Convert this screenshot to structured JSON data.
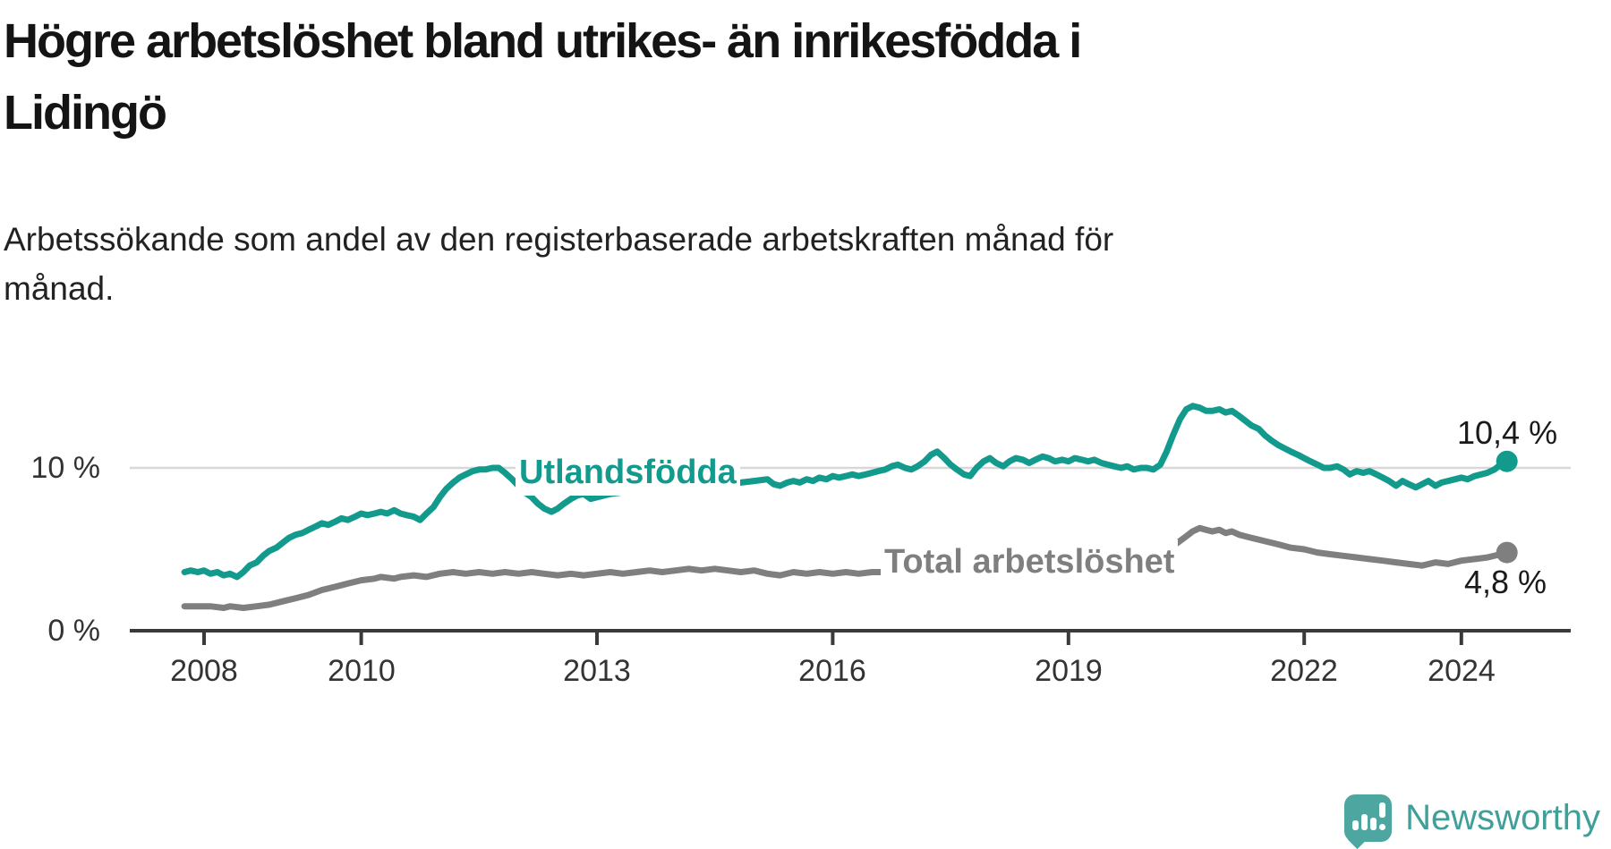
{
  "header": {
    "title_line1": "Högre arbetslöshet bland utrikes- än inrikesfödda i",
    "title_line2": "Lidingö",
    "subtitle_line1": "Arbetssökande som andel av den registerbaserade arbetskraften månad för",
    "subtitle_line2": "månad."
  },
  "branding": {
    "logo_text": "Newsworthy",
    "logo_icon": "newsworthy-speech-bubble-bar-chart-icon"
  },
  "chart_data": {
    "type": "line",
    "title": "Högre arbetslöshet bland utrikes- än inrikesfödda i Lidingö",
    "subtitle": "Arbetssökande som andel av den registerbaserade arbetskraften månad för månad.",
    "xlabel": "",
    "ylabel": "Arbetssökande som andel av den registerbaserade arbetskraften (%)",
    "x_unit": "decimal year, monthly data",
    "x_range": [
      2007.75,
      2024.58
    ],
    "ylim": [
      0,
      15
    ],
    "grid": "horizontal-only",
    "y_grid": [
      10
    ],
    "y_tick_labels": [
      "10 %",
      "0 %"
    ],
    "x_ticks": [
      2008,
      2010,
      2013,
      2016,
      2019,
      2022,
      2024
    ],
    "x_tick_labels": [
      "2008",
      "2010",
      "2013",
      "2016",
      "2019",
      "2022",
      "2024"
    ],
    "legend_position": "inline-labels-on-lines",
    "series": [
      {
        "name": "Utlandsfödda",
        "color": "#129a8d",
        "end_label": "10,4 %",
        "end_value": 10.4,
        "points": [
          [
            2007.75,
            3.6
          ],
          [
            2007.83,
            3.7
          ],
          [
            2007.92,
            3.6
          ],
          [
            2008.0,
            3.7
          ],
          [
            2008.08,
            3.5
          ],
          [
            2008.17,
            3.6
          ],
          [
            2008.25,
            3.4
          ],
          [
            2008.33,
            3.5
          ],
          [
            2008.42,
            3.3
          ],
          [
            2008.5,
            3.6
          ],
          [
            2008.58,
            4.0
          ],
          [
            2008.67,
            4.2
          ],
          [
            2008.75,
            4.6
          ],
          [
            2008.83,
            4.9
          ],
          [
            2008.92,
            5.1
          ],
          [
            2009.0,
            5.4
          ],
          [
            2009.08,
            5.7
          ],
          [
            2009.17,
            5.9
          ],
          [
            2009.25,
            6.0
          ],
          [
            2009.33,
            6.2
          ],
          [
            2009.42,
            6.4
          ],
          [
            2009.5,
            6.6
          ],
          [
            2009.58,
            6.5
          ],
          [
            2009.67,
            6.7
          ],
          [
            2009.75,
            6.9
          ],
          [
            2009.83,
            6.8
          ],
          [
            2009.92,
            7.0
          ],
          [
            2010.0,
            7.2
          ],
          [
            2010.08,
            7.1
          ],
          [
            2010.17,
            7.2
          ],
          [
            2010.25,
            7.3
          ],
          [
            2010.33,
            7.2
          ],
          [
            2010.42,
            7.4
          ],
          [
            2010.5,
            7.2
          ],
          [
            2010.58,
            7.1
          ],
          [
            2010.67,
            7.0
          ],
          [
            2010.75,
            6.8
          ],
          [
            2010.83,
            7.2
          ],
          [
            2010.92,
            7.6
          ],
          [
            2011.0,
            8.2
          ],
          [
            2011.08,
            8.7
          ],
          [
            2011.17,
            9.1
          ],
          [
            2011.25,
            9.4
          ],
          [
            2011.33,
            9.6
          ],
          [
            2011.42,
            9.8
          ],
          [
            2011.5,
            9.9
          ],
          [
            2011.58,
            9.9
          ],
          [
            2011.67,
            10.0
          ],
          [
            2011.75,
            10.0
          ],
          [
            2011.83,
            9.7
          ],
          [
            2011.92,
            9.3
          ],
          [
            2012.0,
            8.9
          ],
          [
            2012.08,
            8.5
          ],
          [
            2012.17,
            8.2
          ],
          [
            2012.25,
            7.8
          ],
          [
            2012.33,
            7.5
          ],
          [
            2012.42,
            7.3
          ],
          [
            2012.5,
            7.5
          ],
          [
            2012.58,
            7.8
          ],
          [
            2012.67,
            8.1
          ],
          [
            2012.75,
            8.3
          ],
          [
            2012.83,
            8.4
          ],
          [
            2012.92,
            8.1
          ],
          [
            2013.0,
            8.2
          ],
          [
            2013.17,
            8.4
          ],
          [
            2013.33,
            8.5
          ],
          [
            2013.5,
            8.6
          ],
          [
            2013.67,
            8.5
          ],
          [
            2013.83,
            8.7
          ],
          [
            2014.0,
            8.8
          ],
          [
            2014.17,
            8.9
          ],
          [
            2014.33,
            8.8
          ],
          [
            2014.5,
            8.9
          ],
          [
            2014.67,
            9.0
          ],
          [
            2014.83,
            9.1
          ],
          [
            2015.0,
            9.2
          ],
          [
            2015.17,
            9.3
          ],
          [
            2015.25,
            9.0
          ],
          [
            2015.33,
            8.9
          ],
          [
            2015.42,
            9.1
          ],
          [
            2015.5,
            9.2
          ],
          [
            2015.58,
            9.1
          ],
          [
            2015.67,
            9.3
          ],
          [
            2015.75,
            9.2
          ],
          [
            2015.83,
            9.4
          ],
          [
            2015.92,
            9.3
          ],
          [
            2016.0,
            9.5
          ],
          [
            2016.08,
            9.4
          ],
          [
            2016.17,
            9.5
          ],
          [
            2016.25,
            9.6
          ],
          [
            2016.33,
            9.5
          ],
          [
            2016.42,
            9.6
          ],
          [
            2016.5,
            9.7
          ],
          [
            2016.58,
            9.8
          ],
          [
            2016.67,
            9.9
          ],
          [
            2016.75,
            10.1
          ],
          [
            2016.83,
            10.2
          ],
          [
            2016.92,
            10.0
          ],
          [
            2017.0,
            9.9
          ],
          [
            2017.08,
            10.1
          ],
          [
            2017.17,
            10.4
          ],
          [
            2017.25,
            10.8
          ],
          [
            2017.33,
            11.0
          ],
          [
            2017.42,
            10.6
          ],
          [
            2017.5,
            10.2
          ],
          [
            2017.58,
            9.9
          ],
          [
            2017.67,
            9.6
          ],
          [
            2017.75,
            9.5
          ],
          [
            2017.83,
            10.0
          ],
          [
            2017.92,
            10.4
          ],
          [
            2018.0,
            10.6
          ],
          [
            2018.08,
            10.3
          ],
          [
            2018.17,
            10.1
          ],
          [
            2018.25,
            10.4
          ],
          [
            2018.33,
            10.6
          ],
          [
            2018.42,
            10.5
          ],
          [
            2018.5,
            10.3
          ],
          [
            2018.58,
            10.5
          ],
          [
            2018.67,
            10.7
          ],
          [
            2018.75,
            10.6
          ],
          [
            2018.83,
            10.4
          ],
          [
            2018.92,
            10.5
          ],
          [
            2019.0,
            10.4
          ],
          [
            2019.08,
            10.6
          ],
          [
            2019.17,
            10.5
          ],
          [
            2019.25,
            10.4
          ],
          [
            2019.33,
            10.5
          ],
          [
            2019.42,
            10.3
          ],
          [
            2019.5,
            10.2
          ],
          [
            2019.58,
            10.1
          ],
          [
            2019.67,
            10.0
          ],
          [
            2019.75,
            10.1
          ],
          [
            2019.83,
            9.9
          ],
          [
            2019.92,
            10.0
          ],
          [
            2020.0,
            10.0
          ],
          [
            2020.08,
            9.9
          ],
          [
            2020.17,
            10.2
          ],
          [
            2020.25,
            11.0
          ],
          [
            2020.33,
            12.0
          ],
          [
            2020.42,
            13.0
          ],
          [
            2020.5,
            13.6
          ],
          [
            2020.58,
            13.8
          ],
          [
            2020.67,
            13.7
          ],
          [
            2020.75,
            13.5
          ],
          [
            2020.83,
            13.5
          ],
          [
            2020.92,
            13.6
          ],
          [
            2021.0,
            13.4
          ],
          [
            2021.08,
            13.5
          ],
          [
            2021.17,
            13.2
          ],
          [
            2021.25,
            12.9
          ],
          [
            2021.33,
            12.6
          ],
          [
            2021.42,
            12.4
          ],
          [
            2021.5,
            12.0
          ],
          [
            2021.58,
            11.7
          ],
          [
            2021.67,
            11.4
          ],
          [
            2021.75,
            11.2
          ],
          [
            2021.83,
            11.0
          ],
          [
            2021.92,
            10.8
          ],
          [
            2022.0,
            10.6
          ],
          [
            2022.08,
            10.4
          ],
          [
            2022.17,
            10.2
          ],
          [
            2022.25,
            10.0
          ],
          [
            2022.33,
            10.0
          ],
          [
            2022.42,
            10.1
          ],
          [
            2022.5,
            9.9
          ],
          [
            2022.58,
            9.6
          ],
          [
            2022.67,
            9.8
          ],
          [
            2022.75,
            9.7
          ],
          [
            2022.83,
            9.8
          ],
          [
            2022.92,
            9.6
          ],
          [
            2023.0,
            9.4
          ],
          [
            2023.08,
            9.2
          ],
          [
            2023.17,
            8.9
          ],
          [
            2023.25,
            9.2
          ],
          [
            2023.33,
            9.0
          ],
          [
            2023.42,
            8.8
          ],
          [
            2023.5,
            9.0
          ],
          [
            2023.58,
            9.2
          ],
          [
            2023.67,
            8.9
          ],
          [
            2023.75,
            9.1
          ],
          [
            2023.83,
            9.2
          ],
          [
            2023.92,
            9.3
          ],
          [
            2024.0,
            9.4
          ],
          [
            2024.08,
            9.3
          ],
          [
            2024.17,
            9.5
          ],
          [
            2024.25,
            9.6
          ],
          [
            2024.33,
            9.7
          ],
          [
            2024.42,
            9.9
          ],
          [
            2024.5,
            10.2
          ],
          [
            2024.58,
            10.4
          ]
        ]
      },
      {
        "name": "Total arbetslöshet",
        "color": "#7f7f7f",
        "end_label": "4,8 %",
        "end_value": 4.8,
        "points": [
          [
            2007.75,
            1.5
          ],
          [
            2007.92,
            1.5
          ],
          [
            2008.08,
            1.5
          ],
          [
            2008.25,
            1.4
          ],
          [
            2008.33,
            1.5
          ],
          [
            2008.5,
            1.4
          ],
          [
            2008.67,
            1.5
          ],
          [
            2008.83,
            1.6
          ],
          [
            2009.0,
            1.8
          ],
          [
            2009.17,
            2.0
          ],
          [
            2009.33,
            2.2
          ],
          [
            2009.5,
            2.5
          ],
          [
            2009.67,
            2.7
          ],
          [
            2009.83,
            2.9
          ],
          [
            2010.0,
            3.1
          ],
          [
            2010.17,
            3.2
          ],
          [
            2010.25,
            3.3
          ],
          [
            2010.42,
            3.2
          ],
          [
            2010.5,
            3.3
          ],
          [
            2010.67,
            3.4
          ],
          [
            2010.83,
            3.3
          ],
          [
            2011.0,
            3.5
          ],
          [
            2011.17,
            3.6
          ],
          [
            2011.33,
            3.5
          ],
          [
            2011.5,
            3.6
          ],
          [
            2011.67,
            3.5
          ],
          [
            2011.83,
            3.6
          ],
          [
            2012.0,
            3.5
          ],
          [
            2012.17,
            3.6
          ],
          [
            2012.33,
            3.5
          ],
          [
            2012.5,
            3.4
          ],
          [
            2012.67,
            3.5
          ],
          [
            2012.83,
            3.4
          ],
          [
            2013.0,
            3.5
          ],
          [
            2013.17,
            3.6
          ],
          [
            2013.33,
            3.5
          ],
          [
            2013.5,
            3.6
          ],
          [
            2013.67,
            3.7
          ],
          [
            2013.83,
            3.6
          ],
          [
            2014.0,
            3.7
          ],
          [
            2014.17,
            3.8
          ],
          [
            2014.33,
            3.7
          ],
          [
            2014.5,
            3.8
          ],
          [
            2014.67,
            3.7
          ],
          [
            2014.83,
            3.6
          ],
          [
            2015.0,
            3.7
          ],
          [
            2015.17,
            3.5
          ],
          [
            2015.33,
            3.4
          ],
          [
            2015.5,
            3.6
          ],
          [
            2015.67,
            3.5
          ],
          [
            2015.83,
            3.6
          ],
          [
            2016.0,
            3.5
          ],
          [
            2016.17,
            3.6
          ],
          [
            2016.33,
            3.5
          ],
          [
            2016.5,
            3.6
          ],
          [
            2016.67,
            3.6
          ],
          [
            2016.83,
            3.7
          ],
          [
            2017.0,
            3.6
          ],
          [
            2017.25,
            3.6
          ],
          [
            2017.5,
            3.5
          ],
          [
            2017.75,
            3.6
          ],
          [
            2018.0,
            3.6
          ],
          [
            2018.25,
            3.5
          ],
          [
            2018.5,
            3.6
          ],
          [
            2018.75,
            3.5
          ],
          [
            2019.0,
            3.6
          ],
          [
            2019.25,
            3.5
          ],
          [
            2019.5,
            3.6
          ],
          [
            2019.75,
            3.6
          ],
          [
            2020.0,
            3.8
          ],
          [
            2020.17,
            4.3
          ],
          [
            2020.33,
            5.2
          ],
          [
            2020.5,
            5.8
          ],
          [
            2020.58,
            6.1
          ],
          [
            2020.67,
            6.3
          ],
          [
            2020.75,
            6.2
          ],
          [
            2020.83,
            6.1
          ],
          [
            2020.92,
            6.2
          ],
          [
            2021.0,
            6.0
          ],
          [
            2021.08,
            6.1
          ],
          [
            2021.17,
            5.9
          ],
          [
            2021.33,
            5.7
          ],
          [
            2021.5,
            5.5
          ],
          [
            2021.67,
            5.3
          ],
          [
            2021.83,
            5.1
          ],
          [
            2022.0,
            5.0
          ],
          [
            2022.17,
            4.8
          ],
          [
            2022.33,
            4.7
          ],
          [
            2022.5,
            4.6
          ],
          [
            2022.67,
            4.5
          ],
          [
            2022.83,
            4.4
          ],
          [
            2023.0,
            4.3
          ],
          [
            2023.17,
            4.2
          ],
          [
            2023.33,
            4.1
          ],
          [
            2023.5,
            4.0
          ],
          [
            2023.67,
            4.2
          ],
          [
            2023.83,
            4.1
          ],
          [
            2024.0,
            4.3
          ],
          [
            2024.17,
            4.4
          ],
          [
            2024.33,
            4.5
          ],
          [
            2024.5,
            4.7
          ],
          [
            2024.58,
            4.8
          ]
        ]
      }
    ]
  }
}
